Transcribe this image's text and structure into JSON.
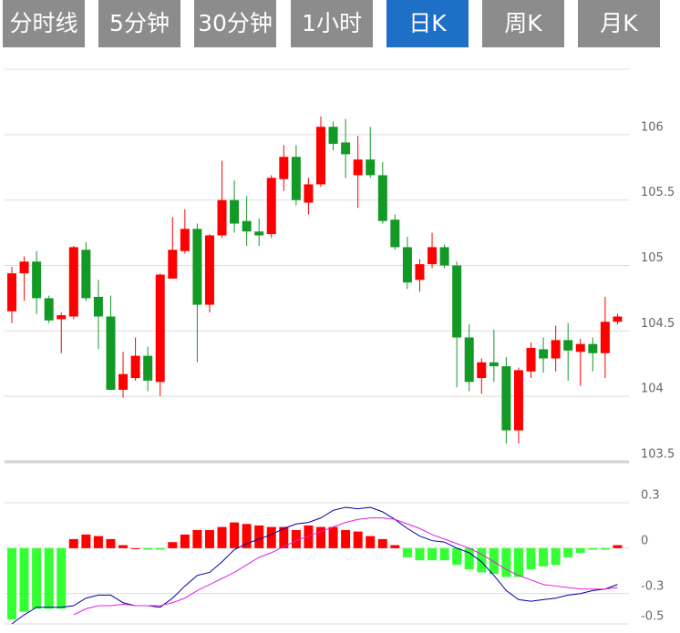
{
  "tabs": [
    {
      "label": "分时线",
      "active": false
    },
    {
      "label": "5分钟",
      "active": false
    },
    {
      "label": "30分钟",
      "active": false
    },
    {
      "label": "1小时",
      "active": false
    },
    {
      "label": "日K",
      "active": true
    },
    {
      "label": "周K",
      "active": false
    },
    {
      "label": "月K",
      "active": false
    }
  ],
  "chart_data": [
    {
      "type": "candlestick",
      "open": [
        104.65,
        104.94,
        105.03,
        104.75,
        104.59,
        104.61,
        105.12,
        104.76,
        104.61,
        104.05,
        104.14,
        104.31,
        104.11,
        104.9,
        105.11,
        105.28,
        104.7,
        105.23,
        105.5,
        105.34,
        105.26,
        105.24,
        105.66,
        105.83,
        105.48,
        105.62,
        106.06,
        105.94,
        105.69,
        105.81,
        105.69,
        105.35,
        105.14,
        104.89,
        105.01,
        105.14,
        105.0,
        104.45,
        104.14,
        104.26,
        104.23,
        103.74,
        104.19,
        104.36,
        104.29,
        104.43,
        104.34,
        104.4,
        104.33,
        104.57
      ],
      "high": [
        104.99,
        105.07,
        105.11,
        104.77,
        104.64,
        105.15,
        105.18,
        104.89,
        104.77,
        104.34,
        104.45,
        104.38,
        104.94,
        105.37,
        105.43,
        105.32,
        105.24,
        105.8,
        105.65,
        105.53,
        105.36,
        105.69,
        105.92,
        105.92,
        105.67,
        106.14,
        106.1,
        106.12,
        105.99,
        106.06,
        105.79,
        105.39,
        105.22,
        105.05,
        105.25,
        105.16,
        105.03,
        104.55,
        104.29,
        104.51,
        104.3,
        104.22,
        104.41,
        104.45,
        104.54,
        104.56,
        104.44,
        104.45,
        104.76,
        104.63
      ],
      "low": [
        104.56,
        104.73,
        104.63,
        104.56,
        104.33,
        104.59,
        104.73,
        104.36,
        104.05,
        103.99,
        104.12,
        104.04,
        104.0,
        104.9,
        105.09,
        104.26,
        104.64,
        105.21,
        105.25,
        105.15,
        105.15,
        105.21,
        105.57,
        105.46,
        105.39,
        105.6,
        105.88,
        105.67,
        105.44,
        105.67,
        105.32,
        105.12,
        104.82,
        104.8,
        104.98,
        104.98,
        104.07,
        104.04,
        104.02,
        104.11,
        103.64,
        103.64,
        104.14,
        104.18,
        104.19,
        104.12,
        104.08,
        104.19,
        104.14,
        104.55
      ],
      "close": [
        104.94,
        105.03,
        104.75,
        104.58,
        104.62,
        105.14,
        104.75,
        104.61,
        104.05,
        104.17,
        104.31,
        104.12,
        104.93,
        105.12,
        105.28,
        104.7,
        105.23,
        105.5,
        105.32,
        105.26,
        105.23,
        105.67,
        105.83,
        105.5,
        105.62,
        106.06,
        105.93,
        105.85,
        105.81,
        105.69,
        105.34,
        105.14,
        104.87,
        105.01,
        105.14,
        105.0,
        104.45,
        104.11,
        104.26,
        104.23,
        103.74,
        104.2,
        104.37,
        104.29,
        104.43,
        104.35,
        104.4,
        104.33,
        104.57,
        104.61
      ],
      "up_color": "#ff0000",
      "down_color": "#139a26",
      "ylim": [
        103.5,
        106.5
      ],
      "yticks": [
        103.5,
        104.0,
        104.5,
        105.0,
        105.5,
        106.0
      ],
      "grid": true
    },
    {
      "type": "macd",
      "histogram": {
        "values": [
          -0.47,
          -0.42,
          -0.4,
          -0.4,
          -0.4,
          0.06,
          0.09,
          0.08,
          0.06,
          0.02,
          0,
          -0.01,
          -0.01,
          0.04,
          0.09,
          0.12,
          0.12,
          0.14,
          0.17,
          0.16,
          0.15,
          0.14,
          0.14,
          0.12,
          0.15,
          0.14,
          0.14,
          0.12,
          0.11,
          0.08,
          0.06,
          0.02,
          -0.06,
          -0.08,
          -0.08,
          -0.08,
          -0.11,
          -0.14,
          -0.16,
          -0.17,
          -0.19,
          -0.19,
          -0.14,
          -0.12,
          -0.11,
          -0.06,
          -0.03,
          -0.01,
          -0.01,
          0.02
        ],
        "up_color": "#ff0000",
        "down_color": "#33ff33"
      },
      "lines": [
        {
          "color": "#0000a0",
          "values": [
            -0.5,
            -0.44,
            -0.39,
            -0.39,
            -0.39,
            -0.38,
            -0.33,
            -0.31,
            -0.31,
            -0.36,
            -0.38,
            -0.38,
            -0.39,
            -0.33,
            -0.25,
            -0.18,
            -0.16,
            -0.09,
            -0.01,
            0.03,
            0.06,
            0.09,
            0.13,
            0.16,
            0.17,
            0.2,
            0.25,
            0.27,
            0.26,
            0.27,
            0.24,
            0.19,
            0.13,
            0.08,
            0.05,
            0.04,
            0,
            -0.03,
            -0.09,
            -0.18,
            -0.28,
            -0.34,
            -0.35,
            -0.34,
            -0.33,
            -0.31,
            -0.3,
            -0.28,
            -0.27,
            -0.24
          ]
        },
        {
          "color": "#e020e0",
          "values": [
            null,
            null,
            null,
            null,
            null,
            -0.44,
            -0.4,
            -0.38,
            -0.38,
            -0.37,
            -0.38,
            -0.38,
            -0.38,
            -0.36,
            -0.33,
            -0.28,
            -0.24,
            -0.2,
            -0.16,
            -0.11,
            -0.06,
            -0.03,
            0.01,
            0.05,
            0.08,
            0.11,
            0.14,
            0.17,
            0.19,
            0.2,
            0.2,
            0.19,
            0.16,
            0.13,
            0.09,
            0.06,
            0.03,
            0,
            -0.04,
            -0.09,
            -0.14,
            -0.18,
            -0.21,
            -0.24,
            -0.25,
            -0.26,
            -0.27,
            -0.27,
            -0.27,
            -0.26
          ]
        }
      ],
      "ylim": [
        -0.5,
        0.3
      ],
      "yticks": [
        -0.5,
        -0.3,
        0.0,
        0.3
      ],
      "grid": true
    }
  ]
}
